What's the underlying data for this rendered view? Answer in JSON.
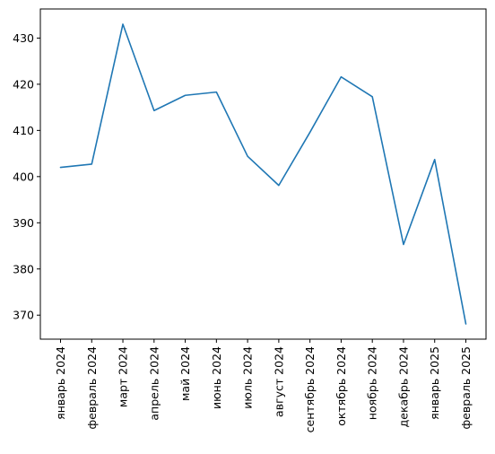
{
  "chart_data": {
    "type": "line",
    "title": "",
    "xlabel": "",
    "ylabel": "",
    "categories": [
      "январь 2024",
      "февраль 2024",
      "март 2024",
      "апрель 2024",
      "май 2024",
      "июнь 2024",
      "июль 2024",
      "август 2024",
      "сентябрь 2024",
      "октябрь 2024",
      "ноябрь 2024",
      "декабрь 2024",
      "январь 2025",
      "февраль 2025"
    ],
    "series": [
      {
        "values": [
          402.0,
          402.7,
          433.0,
          414.3,
          417.6,
          418.3,
          404.4,
          398.1,
          409.6,
          421.6,
          417.3,
          385.3,
          403.7,
          368.1
        ],
        "color": "#1f77b4"
      }
    ],
    "ylim": [
      364.8,
      436.3
    ],
    "yticks": [
      370,
      380,
      390,
      400,
      410,
      420,
      430
    ],
    "grid": false,
    "legend": "none"
  }
}
